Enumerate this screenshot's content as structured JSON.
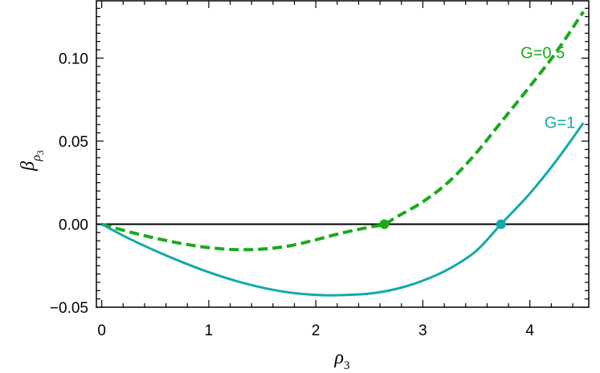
{
  "chart_data": {
    "type": "line",
    "xlabel": {
      "base": "ρ",
      "sub": "3"
    },
    "ylabel": {
      "base": "β",
      "sub": "ρ",
      "subsub": "3"
    },
    "xlim": [
      -0.05,
      4.55
    ],
    "ylim": [
      -0.05,
      0.135
    ],
    "x_ticks": [
      {
        "value": 0,
        "label": "0"
      },
      {
        "value": 1,
        "label": "1"
      },
      {
        "value": 2,
        "label": "2"
      },
      {
        "value": 3,
        "label": "3"
      },
      {
        "value": 4,
        "label": "4"
      }
    ],
    "y_ticks": [
      {
        "value": -0.05,
        "label": "−0.05"
      },
      {
        "value": 0.0,
        "label": "0.00"
      },
      {
        "value": 0.05,
        "label": "0.05"
      },
      {
        "value": 0.1,
        "label": "0.10"
      }
    ],
    "grid": false,
    "zero_line": true,
    "series": [
      {
        "name": "G=0.5",
        "color": "#1aaa1a",
        "style": "dashed",
        "x": [
          0,
          0.25,
          0.5,
          0.75,
          1.0,
          1.25,
          1.5,
          1.75,
          2.0,
          2.25,
          2.5,
          2.64,
          2.75,
          3.0,
          3.25,
          3.5,
          3.75,
          4.0,
          4.25,
          4.5
        ],
        "y": [
          0,
          -0.0045,
          -0.0084,
          -0.0117,
          -0.0141,
          -0.0153,
          -0.015,
          -0.0131,
          -0.0094,
          -0.0052,
          -0.0018,
          0.0,
          0.0042,
          0.0135,
          0.026,
          0.043,
          0.063,
          0.083,
          0.104,
          0.128
        ],
        "marker": {
          "x": 2.64,
          "y": 0.0
        }
      },
      {
        "name": "G=1",
        "color": "#12aaaa",
        "style": "solid",
        "x": [
          0,
          0.25,
          0.5,
          0.75,
          1.0,
          1.25,
          1.5,
          1.75,
          2.0,
          2.15,
          2.25,
          2.5,
          2.75,
          3.0,
          3.25,
          3.5,
          3.73,
          4.0,
          4.25,
          4.5
        ],
        "y": [
          0,
          -0.0085,
          -0.016,
          -0.0228,
          -0.0289,
          -0.0341,
          -0.0382,
          -0.0411,
          -0.0426,
          -0.0428,
          -0.0427,
          -0.0418,
          -0.039,
          -0.034,
          -0.0267,
          -0.016,
          0.0,
          0.0185,
          0.0385,
          0.061
        ],
        "marker": {
          "x": 3.73,
          "y": 0.0
        }
      }
    ]
  }
}
